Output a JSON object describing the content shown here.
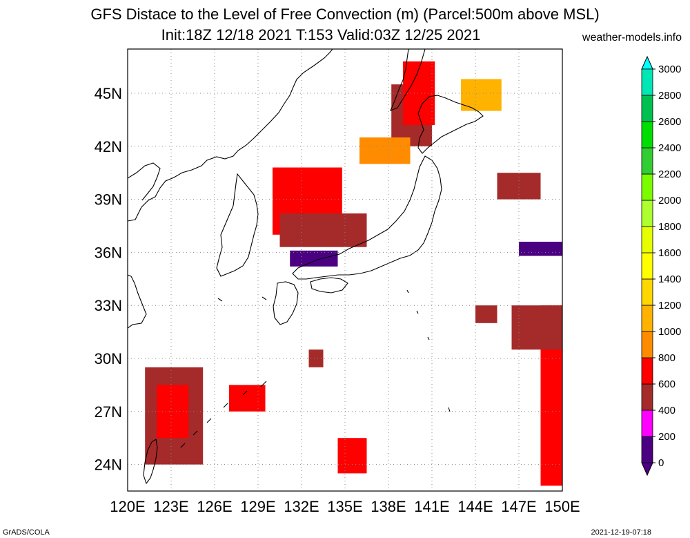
{
  "title": "GFS Distace to the Level of Free Convection (m) (Parcel:500m above MSL)",
  "subtitle": "Init:18Z 12/18 2021 T:153 Valid:03Z 12/25 2021",
  "site": "weather-models.info",
  "footer_left": "GrADS/COLA",
  "footer_right": "2021-12-19-07:18",
  "map": {
    "lon_ticks": [
      "120E",
      "123E",
      "126E",
      "129E",
      "132E",
      "135E",
      "138E",
      "141E",
      "144E",
      "147E",
      "150E"
    ],
    "lat_ticks": [
      "24N",
      "27N",
      "30N",
      "33N",
      "36N",
      "39N",
      "42N",
      "45N"
    ],
    "lon_range": [
      120,
      150
    ],
    "lat_range": [
      22.5,
      47.5
    ],
    "grid": "dotted"
  },
  "colorbar": {
    "labels": [
      "0",
      "200",
      "400",
      "600",
      "800",
      "1000",
      "1200",
      "1400",
      "1600",
      "1800",
      "2000",
      "2200",
      "2400",
      "2600",
      "2800",
      "3000"
    ],
    "colors": [
      "#4b0082",
      "#ff00ff",
      "#a52a2a",
      "#ff0000",
      "#ff8c00",
      "#ffb300",
      "#ffd700",
      "#ffff00",
      "#e6ff00",
      "#adff2f",
      "#7cfc00",
      "#32cd32",
      "#00dd00",
      "#00c050",
      "#00e6b4",
      "#00ffff"
    ]
  },
  "regions": [
    {
      "name": "hokkaido-north",
      "color": "#a52a2a",
      "lon": [
        138.2,
        141.0
      ],
      "lat": [
        42.0,
        45.5
      ]
    },
    {
      "name": "hokkaido-core",
      "color": "#ff0000",
      "lon": [
        139.0,
        141.2
      ],
      "lat": [
        43.2,
        46.8
      ]
    },
    {
      "name": "sea-of-japan-orange",
      "color": "#ff8c00",
      "lon": [
        136.0,
        139.5
      ],
      "lat": [
        41.0,
        42.5
      ]
    },
    {
      "name": "sea-of-japan-red",
      "color": "#ff0000",
      "lon": [
        130.0,
        134.8
      ],
      "lat": [
        37.0,
        40.8
      ]
    },
    {
      "name": "sea-of-japan-brown",
      "color": "#a52a2a",
      "lon": [
        130.5,
        136.5
      ],
      "lat": [
        36.3,
        38.2
      ]
    },
    {
      "name": "honshu-purple",
      "color": "#4b0082",
      "lon": [
        131.2,
        134.5
      ],
      "lat": [
        35.2,
        36.1
      ]
    },
    {
      "name": "okhotsk-orange",
      "color": "#ffb300",
      "lon": [
        143.0,
        145.8
      ],
      "lat": [
        44.0,
        45.8
      ]
    },
    {
      "name": "east-pacific-brown",
      "color": "#a52a2a",
      "lon": [
        145.5,
        148.5
      ],
      "lat": [
        39.0,
        40.5
      ]
    },
    {
      "name": "east-purple",
      "color": "#4b0082",
      "lon": [
        147.0,
        150.0
      ],
      "lat": [
        35.8,
        36.6
      ]
    },
    {
      "name": "east-edge-red",
      "color": "#ff0000",
      "lon": [
        148.5,
        150.0
      ],
      "lat": [
        22.8,
        33.0
      ]
    },
    {
      "name": "east-edge-brown",
      "color": "#a52a2a",
      "lon": [
        146.5,
        150.0
      ],
      "lat": [
        30.5,
        33.0
      ]
    },
    {
      "name": "taiwan-brown",
      "color": "#a52a2a",
      "lon": [
        121.2,
        125.2
      ],
      "lat": [
        24.0,
        29.5
      ]
    },
    {
      "name": "taiwan-red",
      "color": "#ff0000",
      "lon": [
        122.0,
        124.2
      ],
      "lat": [
        25.5,
        28.5
      ]
    },
    {
      "name": "east-china-sea-red",
      "color": "#ff0000",
      "lon": [
        127.0,
        129.5
      ],
      "lat": [
        27.0,
        28.5
      ]
    },
    {
      "name": "ryukyu-red",
      "color": "#ff0000",
      "lon": [
        134.5,
        136.5
      ],
      "lat": [
        23.5,
        25.5
      ]
    },
    {
      "name": "kyushu-south-brown",
      "color": "#a52a2a",
      "lon": [
        132.5,
        133.5
      ],
      "lat": [
        29.5,
        30.5
      ]
    },
    {
      "name": "mid-pacific-brown",
      "color": "#a52a2a",
      "lon": [
        144.0,
        145.5
      ],
      "lat": [
        32.0,
        33.0
      ]
    }
  ]
}
